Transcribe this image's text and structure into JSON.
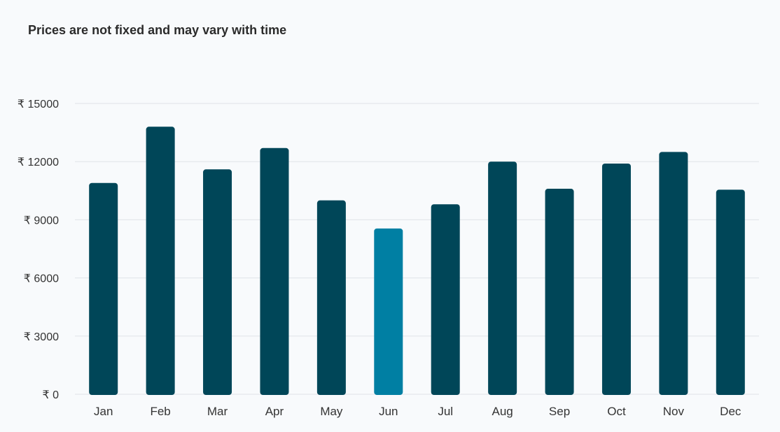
{
  "chart_data": {
    "type": "bar",
    "title": "Prices are not fixed and may vary with time",
    "categories": [
      "Jan",
      "Feb",
      "Mar",
      "Apr",
      "May",
      "Jun",
      "Jul",
      "Aug",
      "Sep",
      "Oct",
      "Nov",
      "Dec"
    ],
    "values": [
      10900,
      13800,
      11600,
      12700,
      10000,
      8550,
      9800,
      12000,
      10600,
      11900,
      12500,
      10550
    ],
    "highlight_category": "Jun",
    "ylim": [
      0,
      15000
    ],
    "yticks": [
      0,
      3000,
      6000,
      9000,
      12000,
      15000
    ],
    "ytick_labels": [
      "₹ 0",
      "₹ 3000",
      "₹ 6000",
      "₹ 9000",
      "₹ 12000",
      "₹ 15000"
    ],
    "grid": true,
    "xlabel": "",
    "ylabel": ""
  },
  "colors": {
    "bar": "#004658",
    "highlight": "#007fa3",
    "grid": "#dfe3e8",
    "background": "#f8fafc"
  }
}
